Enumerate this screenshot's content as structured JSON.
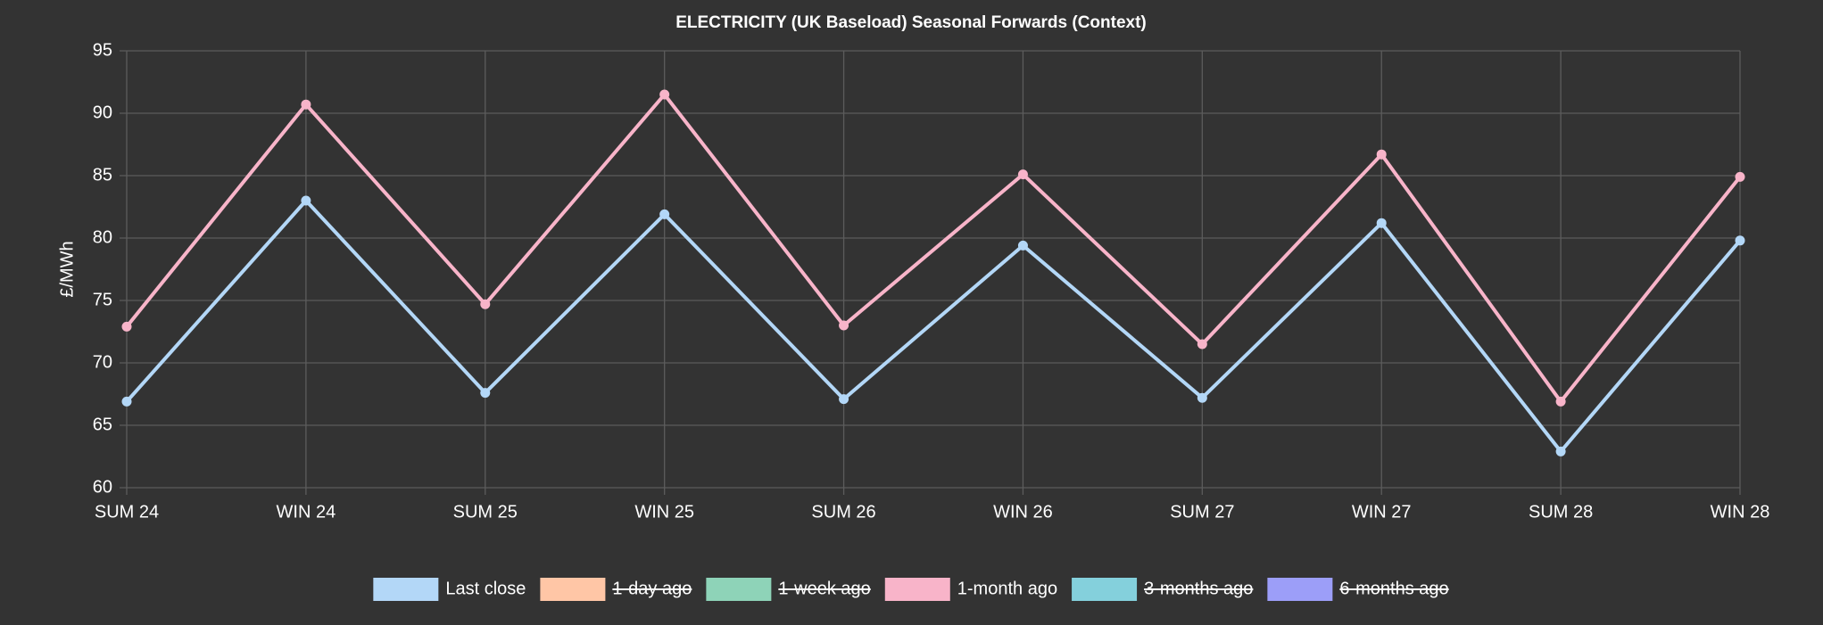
{
  "chart_data": {
    "type": "line",
    "title": "ELECTRICITY (UK Baseload) Seasonal Forwards (Context)",
    "y_label": "£/MWh",
    "categories": [
      "SUM 24",
      "WIN 24",
      "SUM 25",
      "WIN 25",
      "SUM 26",
      "WIN 26",
      "SUM 27",
      "WIN 27",
      "SUM 28",
      "WIN 28"
    ],
    "series": [
      {
        "name": "Last close",
        "color": "#b3d7f7",
        "values": [
          66.9,
          83.0,
          67.6,
          81.9,
          67.1,
          79.4,
          67.2,
          81.2,
          62.9,
          79.8
        ]
      },
      {
        "name": "1-day ago",
        "color": "#ffc6a6",
        "hidden": true,
        "values": [
          null,
          null,
          null,
          null,
          null,
          null,
          null,
          null,
          null,
          null
        ]
      },
      {
        "name": "1-week ago",
        "color": "#8ed3b8",
        "hidden": true,
        "values": [
          null,
          null,
          null,
          null,
          null,
          null,
          null,
          null,
          null,
          null
        ]
      },
      {
        "name": "1-month ago",
        "color": "#f8b4c9",
        "values": [
          72.9,
          90.7,
          74.7,
          91.5,
          73.0,
          85.1,
          71.5,
          86.7,
          66.9,
          84.9
        ]
      },
      {
        "name": "3-months ago",
        "color": "#84d0dc",
        "hidden": true,
        "values": [
          null,
          null,
          null,
          null,
          null,
          null,
          null,
          null,
          null,
          null
        ]
      },
      {
        "name": "6-months ago",
        "color": "#9c9ef8",
        "hidden": true,
        "values": [
          null,
          null,
          null,
          null,
          null,
          null,
          null,
          null,
          null,
          null
        ]
      }
    ],
    "ylim": [
      60,
      95
    ],
    "yticks": [
      60,
      65,
      70,
      75,
      80,
      85,
      90,
      95
    ],
    "grid": true,
    "legend": "bottom"
  }
}
